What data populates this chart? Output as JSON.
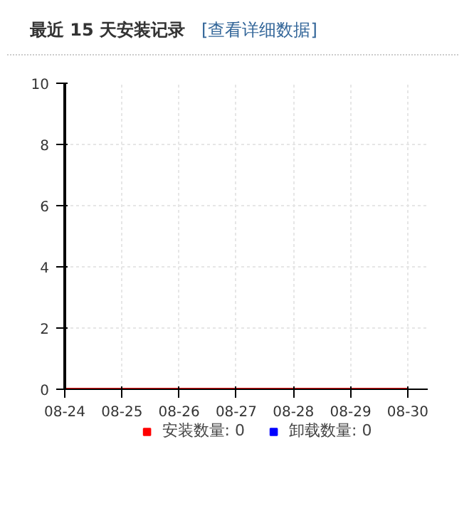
{
  "chart_data": {
    "type": "line",
    "title": "最近 15 天安装记录",
    "subtitle": "[查看详细数据]",
    "categories": [
      "08-24",
      "08-25",
      "08-26",
      "08-27",
      "08-28",
      "08-29",
      "08-30"
    ],
    "series": [
      {
        "name": "安装数量: 0",
        "color": "#ff0000",
        "values": [
          0,
          0,
          0,
          0,
          0,
          0,
          0
        ]
      },
      {
        "name": "卸载数量: 0",
        "color": "#0000ff",
        "values": [
          null,
          null,
          null,
          null,
          null,
          null,
          null
        ]
      }
    ],
    "ylim": [
      0,
      10
    ],
    "yticks": [
      0,
      2,
      4,
      6,
      8,
      10
    ],
    "grid": true,
    "legend": "bottom",
    "marker": "none",
    "line_style": "solid"
  }
}
